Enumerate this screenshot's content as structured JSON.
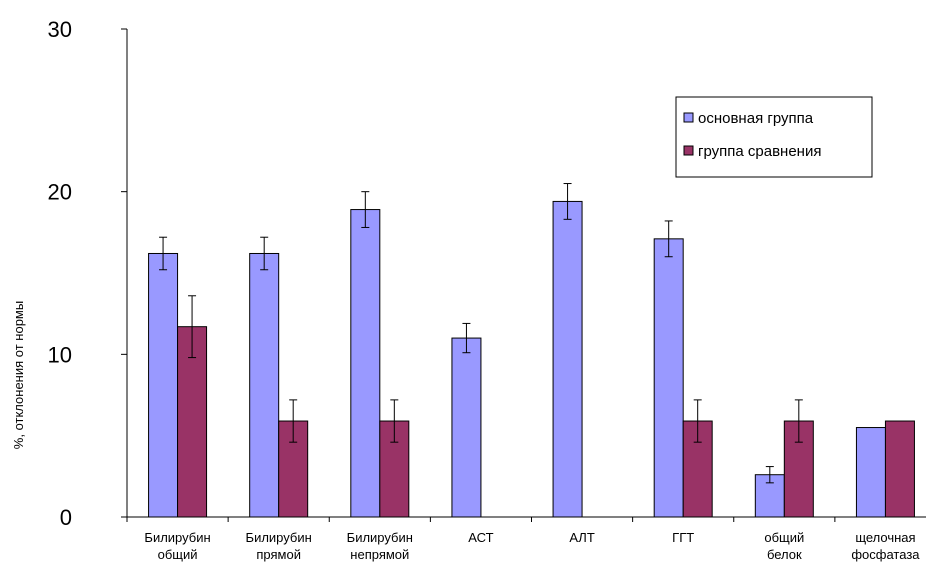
{
  "chart_data": {
    "type": "bar",
    "ylabel": "%, отклонения от нормы",
    "ylim": [
      0,
      30
    ],
    "yticks": [
      0,
      10,
      20,
      30
    ],
    "categories": [
      [
        "Билирубин",
        "общий"
      ],
      [
        "Билирубин",
        "прямой"
      ],
      [
        "Билирубин",
        "непрямой"
      ],
      [
        "АСТ"
      ],
      [
        "АЛТ"
      ],
      [
        "ГГТ"
      ],
      [
        "общий",
        "белок"
      ],
      [
        "щелочная",
        "фосфатаза"
      ]
    ],
    "series": [
      {
        "name": "основная группа",
        "color": "#9999ff",
        "values": [
          16.2,
          16.2,
          18.9,
          11.0,
          19.4,
          17.1,
          2.6,
          5.5
        ],
        "errors": [
          1.0,
          1.0,
          1.1,
          0.9,
          1.1,
          1.1,
          0.5,
          null
        ]
      },
      {
        "name": "группа сравнения",
        "color": "#993366",
        "values": [
          11.7,
          5.9,
          5.9,
          null,
          null,
          5.9,
          5.9,
          5.9
        ],
        "errors": [
          1.9,
          1.3,
          1.3,
          null,
          null,
          1.3,
          1.3,
          null
        ]
      }
    ],
    "legend": "top-right",
    "grid": false
  }
}
